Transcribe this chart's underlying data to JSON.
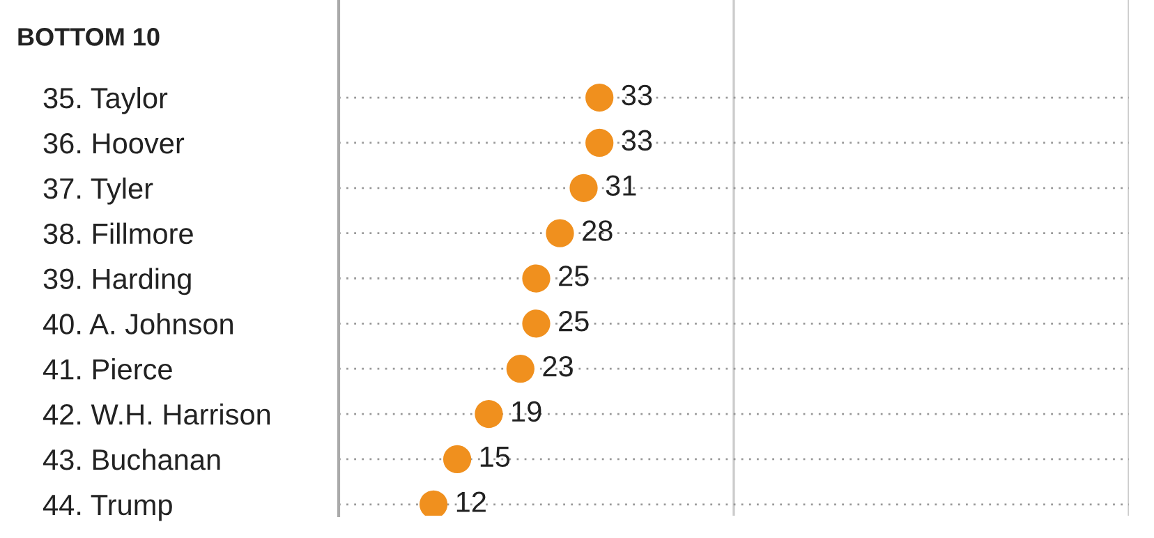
{
  "chart_data": {
    "type": "scatter",
    "orientation": "horizontal",
    "title": "BOTTOM 10",
    "categories": [
      "35. Taylor",
      "36. Hoover",
      "37. Tyler",
      "38. Fillmore",
      "39. Harding",
      "40. A. Johnson",
      "41. Pierce",
      "42. W.H. Harrison",
      "43. Buchanan",
      "44. Trump"
    ],
    "values": [
      33,
      33,
      31,
      28,
      25,
      25,
      23,
      19,
      15,
      12
    ],
    "color": "#f0901e",
    "xlim": [
      0,
      100
    ],
    "ref_lines": [
      {
        "axis": "x",
        "value": 50,
        "color": "#cccccc"
      },
      {
        "axis": "x",
        "value": 100,
        "color": "#cccccc"
      }
    ],
    "tick_labels": "y",
    "grid": "y",
    "marker": "circle",
    "data_labels": true
  }
}
